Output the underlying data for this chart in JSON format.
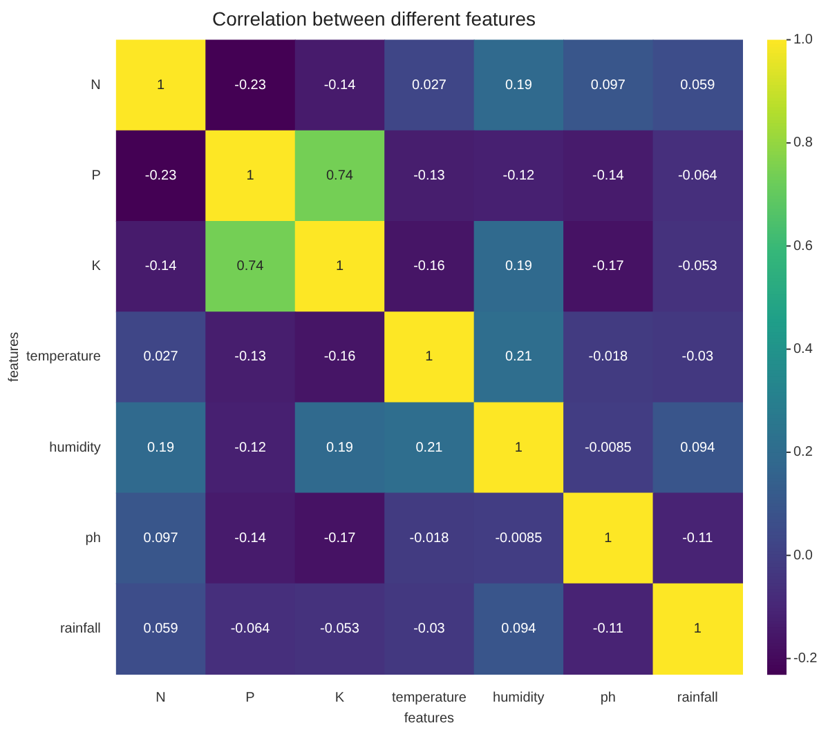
{
  "chart_data": {
    "type": "heatmap",
    "title": "Correlation between different features",
    "xlabel": "features",
    "ylabel": "features",
    "categories": [
      "N",
      "P",
      "K",
      "temperature",
      "humidity",
      "ph",
      "rainfall"
    ],
    "y_categories": [
      "N",
      "P",
      "K",
      "temperature",
      "humidity",
      "ph",
      "rainfall"
    ],
    "cells": [
      [
        1,
        -0.23,
        -0.14,
        0.027,
        0.19,
        0.097,
        0.059
      ],
      [
        -0.23,
        1,
        0.74,
        -0.13,
        -0.12,
        -0.14,
        -0.064
      ],
      [
        -0.14,
        0.74,
        1,
        -0.16,
        0.19,
        -0.17,
        -0.053
      ],
      [
        0.027,
        -0.13,
        -0.16,
        1,
        0.21,
        -0.018,
        -0.03
      ],
      [
        0.19,
        -0.12,
        0.19,
        0.21,
        1,
        -0.0085,
        0.094
      ],
      [
        0.097,
        -0.14,
        -0.17,
        -0.018,
        -0.0085,
        1,
        -0.11
      ],
      [
        0.059,
        -0.064,
        -0.053,
        -0.03,
        0.094,
        -0.11,
        1
      ]
    ],
    "clim": [
      -0.23,
      1
    ],
    "cticks": [
      -0.2,
      {
        "value": 0,
        "label": "0.0"
      },
      0.2,
      0.4,
      0.6,
      0.8,
      {
        "value": 1,
        "label": "1.0"
      }
    ],
    "data_labels": true
  }
}
